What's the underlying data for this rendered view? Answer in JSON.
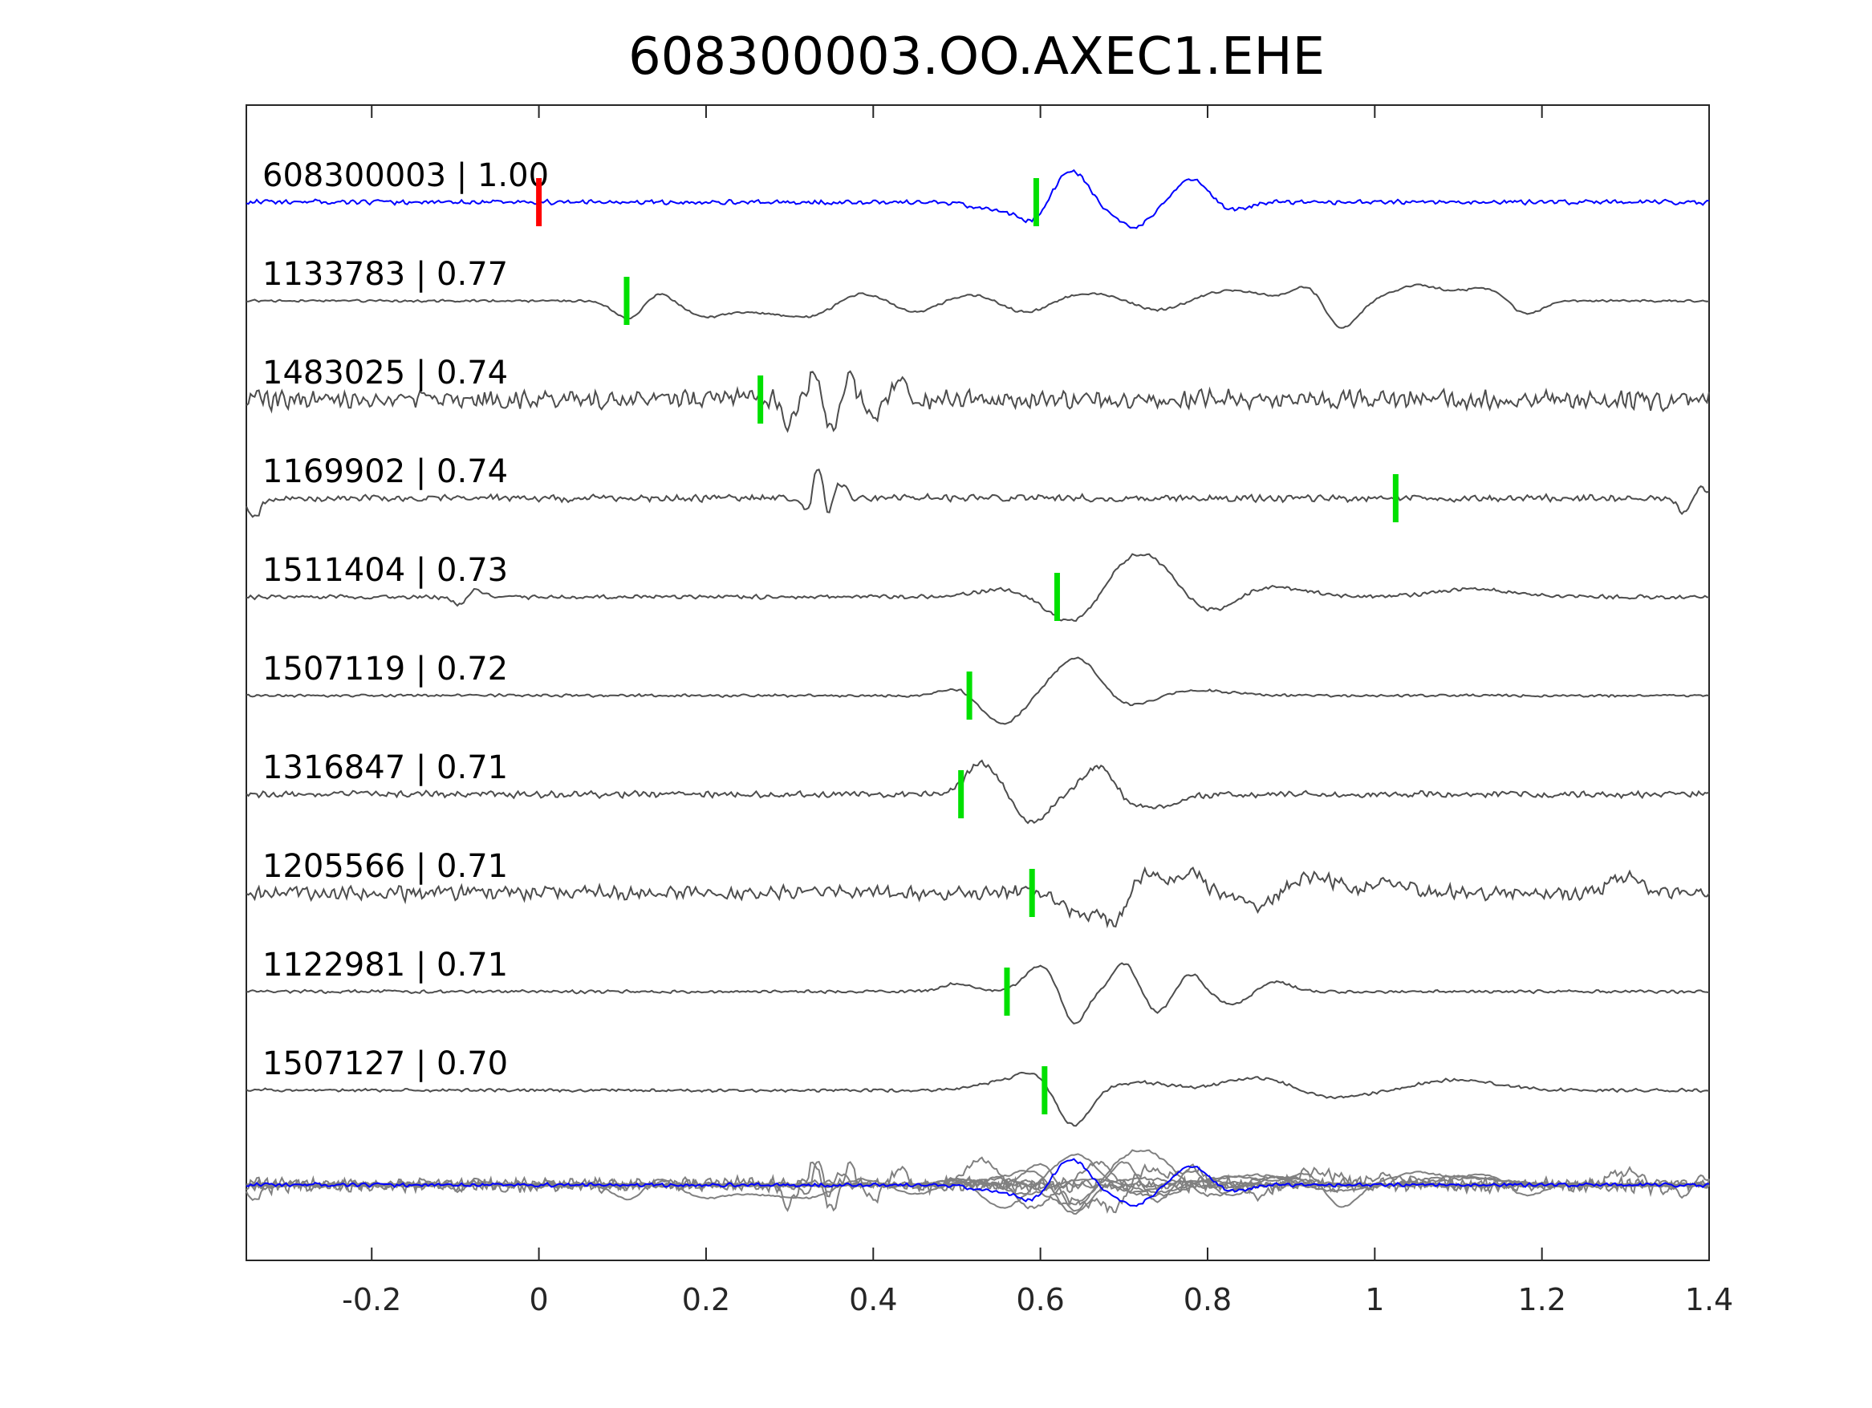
{
  "chart_data": {
    "type": "line",
    "title": "608300003.OO.AXEC1.EHE",
    "xlabel": "",
    "ylabel": "",
    "xlim": [
      -0.35,
      1.4
    ],
    "xticks": [
      -0.2,
      0,
      0.2,
      0.4,
      0.6,
      0.8,
      1,
      1.2,
      1.4
    ],
    "xtick_labels": [
      "-0.2",
      "0",
      "0.2",
      "0.4",
      "0.6",
      "0.8",
      "1",
      "1.2",
      "1.4"
    ],
    "grid": false,
    "legend": "none",
    "colors": {
      "template": "#0000ff",
      "trace": "#4d4d4d",
      "stack": "#808080",
      "pick": "#00e000",
      "origin_pick": "#ff0000",
      "axes": "#262626"
    },
    "traces": [
      {
        "label": "608300003 | 1.00",
        "id": "608300003",
        "cc": "1.00",
        "pick": 0.595,
        "origin_pick": 0.0,
        "kind": "template",
        "features": [
          [
            0.55,
            -0.3,
            0.03
          ],
          [
            0.595,
            -0.8,
            0.02
          ],
          [
            0.635,
            1.3,
            0.025
          ],
          [
            0.68,
            -0.4,
            0.02
          ],
          [
            0.715,
            -0.9,
            0.02
          ],
          [
            0.78,
            0.9,
            0.02
          ],
          [
            0.83,
            -0.3,
            0.02
          ]
        ],
        "noise": 0.12,
        "seed": 11
      },
      {
        "label": "1133783 | 0.77",
        "id": "1133783",
        "cc": "0.77",
        "pick": 0.105,
        "kind": "trace",
        "features": [
          [
            0.11,
            -0.8,
            0.02
          ],
          [
            0.14,
            0.5,
            0.02
          ],
          [
            0.2,
            -0.6,
            0.03
          ],
          [
            0.27,
            -0.4,
            0.03
          ],
          [
            0.33,
            -0.7,
            0.03
          ],
          [
            0.38,
            0.4,
            0.04
          ],
          [
            0.45,
            -0.6,
            0.03
          ],
          [
            0.52,
            0.3,
            0.05
          ],
          [
            0.58,
            -0.6,
            0.03
          ],
          [
            0.66,
            0.3,
            0.04
          ],
          [
            0.74,
            -0.4,
            0.03
          ],
          [
            0.83,
            0.4,
            0.04
          ],
          [
            0.92,
            0.6,
            0.02
          ],
          [
            0.96,
            -1.1,
            0.02
          ],
          [
            1.05,
            0.6,
            0.03
          ],
          [
            1.13,
            0.5,
            0.03
          ],
          [
            1.18,
            -0.6,
            0.02
          ]
        ],
        "noise": 0.06,
        "seed": 23
      },
      {
        "label": "1483025 | 0.74",
        "id": "1483025",
        "cc": "0.74",
        "pick": 0.265,
        "kind": "trace",
        "features": [
          [
            0.3,
            -0.9,
            0.008
          ],
          [
            0.33,
            1.0,
            0.008
          ],
          [
            0.35,
            -1.1,
            0.008
          ],
          [
            0.37,
            0.9,
            0.008
          ],
          [
            0.4,
            -0.7,
            0.01
          ],
          [
            0.43,
            0.6,
            0.01
          ]
        ],
        "noise": 0.5,
        "seed": 37
      },
      {
        "label": "1169902 | 0.74",
        "id": "1169902",
        "cc": "0.74",
        "pick": 1.025,
        "kind": "trace",
        "features": [
          [
            -0.34,
            -0.7,
            0.008
          ],
          [
            0.32,
            -0.5,
            0.006
          ],
          [
            0.335,
            1.4,
            0.006
          ],
          [
            0.345,
            -0.8,
            0.006
          ],
          [
            0.36,
            0.6,
            0.008
          ],
          [
            1.37,
            -0.5,
            0.008
          ],
          [
            1.39,
            0.4,
            0.008
          ]
        ],
        "noise": 0.18,
        "seed": 41
      },
      {
        "label": "1511404 | 0.73",
        "id": "1511404",
        "cc": "0.73",
        "pick": 0.62,
        "kind": "trace",
        "features": [
          [
            -0.09,
            -0.5,
            0.01
          ],
          [
            -0.08,
            0.5,
            0.01
          ],
          [
            0.55,
            0.3,
            0.03
          ],
          [
            0.64,
            -1.1,
            0.03
          ],
          [
            0.72,
            1.7,
            0.04
          ],
          [
            0.8,
            -0.7,
            0.03
          ],
          [
            0.88,
            0.4,
            0.04
          ],
          [
            1.12,
            0.3,
            0.05
          ]
        ],
        "noise": 0.1,
        "seed": 53
      },
      {
        "label": "1507119 | 0.72",
        "id": "1507119",
        "cc": "0.72",
        "pick": 0.515,
        "kind": "trace",
        "features": [
          [
            0.5,
            0.3,
            0.02
          ],
          [
            0.555,
            -1.1,
            0.025
          ],
          [
            0.645,
            1.5,
            0.03
          ],
          [
            0.7,
            -0.5,
            0.03
          ],
          [
            0.79,
            0.2,
            0.04
          ]
        ],
        "noise": 0.07,
        "seed": 61
      },
      {
        "label": "1316847 | 0.71",
        "id": "1316847",
        "cc": "0.71",
        "pick": 0.505,
        "kind": "trace",
        "features": [
          [
            0.53,
            1.2,
            0.02
          ],
          [
            0.59,
            -1.1,
            0.02
          ],
          [
            0.67,
            1.1,
            0.02
          ],
          [
            0.71,
            -0.4,
            0.02
          ],
          [
            0.75,
            -0.4,
            0.02
          ]
        ],
        "noise": 0.17,
        "seed": 71
      },
      {
        "label": "1205566 | 0.71",
        "id": "1205566",
        "cc": "0.71",
        "pick": 0.59,
        "kind": "trace",
        "features": [
          [
            0.65,
            -0.9,
            0.02
          ],
          [
            0.69,
            -1.1,
            0.015
          ],
          [
            0.73,
            0.8,
            0.02
          ],
          [
            0.78,
            0.9,
            0.015
          ],
          [
            0.86,
            -0.6,
            0.02
          ],
          [
            0.93,
            0.6,
            0.03
          ],
          [
            1.02,
            0.5,
            0.02
          ],
          [
            1.3,
            0.6,
            0.02
          ]
        ],
        "noise": 0.36,
        "seed": 83
      },
      {
        "label": "1122981 | 0.71",
        "id": "1122981",
        "cc": "0.71",
        "pick": 0.56,
        "kind": "trace",
        "features": [
          [
            0.5,
            0.3,
            0.02
          ],
          [
            0.6,
            1.0,
            0.02
          ],
          [
            0.64,
            -1.3,
            0.015
          ],
          [
            0.7,
            1.1,
            0.015
          ],
          [
            0.74,
            -0.8,
            0.015
          ],
          [
            0.78,
            0.7,
            0.015
          ],
          [
            0.83,
            -0.5,
            0.02
          ],
          [
            0.88,
            0.4,
            0.02
          ]
        ],
        "noise": 0.08,
        "seed": 97
      },
      {
        "label": "1507127 | 0.70",
        "id": "1507127",
        "cc": "0.70",
        "pick": 0.605,
        "kind": "trace",
        "features": [
          [
            0.55,
            0.3,
            0.03
          ],
          [
            0.59,
            0.6,
            0.02
          ],
          [
            0.64,
            -1.4,
            0.02
          ],
          [
            0.72,
            0.3,
            0.04
          ],
          [
            0.86,
            0.5,
            0.04
          ],
          [
            0.95,
            -0.3,
            0.04
          ],
          [
            1.1,
            0.4,
            0.05
          ]
        ],
        "noise": 0.08,
        "seed": 101
      }
    ],
    "stack_panel": {
      "description_shown": false
    }
  }
}
